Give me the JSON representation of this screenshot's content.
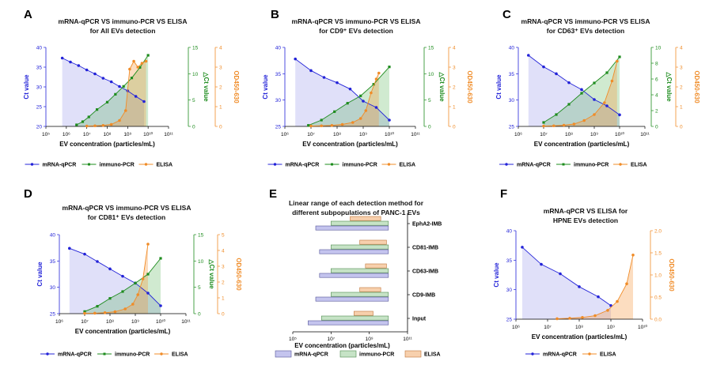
{
  "chart_data": [
    {
      "id": "A",
      "type": "line",
      "panel_label": "A",
      "title_line1": "mRNA-qPCR VS immuno-PCR VS ELISA",
      "title_line2": "for All EVs detection",
      "xlabel": "EV concentration (particles/mL)",
      "ylabel_left": "Ct value",
      "ylabel_mid": "△Ct value",
      "ylabel_right": "OD450-630",
      "xticks": [
        "10⁵",
        "10⁶",
        "10⁷",
        "10⁸",
        "10⁹",
        "10¹⁰",
        "10¹¹"
      ],
      "x_log_range": [
        5,
        11
      ],
      "ct_range": [
        20,
        40
      ],
      "ct_ticks": [
        "20",
        "25",
        "30",
        "35",
        "40"
      ],
      "dct_range": [
        0,
        15
      ],
      "dct_ticks": [
        "0",
        "5",
        "10",
        "15"
      ],
      "od_range": [
        0,
        4
      ],
      "od_ticks": [
        "0",
        "1",
        "2",
        "3",
        "4"
      ],
      "series": [
        {
          "name": "mRNA-qPCR",
          "axis": "ct",
          "color": "#2323d8",
          "x": [
            5.8,
            6.2,
            6.6,
            7.0,
            7.4,
            7.8,
            8.2,
            8.6,
            9.0,
            9.4,
            9.8
          ],
          "y": [
            37.3,
            36.3,
            35.4,
            34.3,
            33.3,
            32.2,
            31.3,
            30.1,
            29.0,
            27.6,
            26.3
          ]
        },
        {
          "name": "immuno-PCR",
          "axis": "dct",
          "color": "#1e8c1e",
          "x": [
            6.5,
            6.8,
            7.1,
            7.5,
            8.0,
            8.4,
            8.8,
            9.2,
            9.6,
            10.0
          ],
          "y": [
            0.3,
            0.9,
            1.8,
            3.2,
            4.6,
            6.1,
            7.6,
            9.2,
            11.2,
            13.5
          ]
        },
        {
          "name": "ELISA",
          "axis": "od",
          "color": "#f08c28",
          "x": [
            7.0,
            7.4,
            7.8,
            8.2,
            8.6,
            8.9,
            9.1,
            9.3,
            9.5,
            9.7,
            9.9
          ],
          "y": [
            0.02,
            0.03,
            0.05,
            0.1,
            0.3,
            0.8,
            2.9,
            3.3,
            3.0,
            3.2,
            3.3
          ]
        }
      ]
    },
    {
      "id": "B",
      "type": "line",
      "panel_label": "B",
      "title_line1": "mRNA-qPCR VS immuno-PCR VS ELISA",
      "title_line2": "for CD9⁺ EVs detection",
      "xlabel": "EV concentration (particles/mL)",
      "ylabel_left": "Ct value",
      "ylabel_mid": "△Ct value",
      "ylabel_right": "OD450-630",
      "xticks": [
        "10⁶",
        "10⁷",
        "10⁸",
        "10⁹",
        "10¹⁰",
        "10¹¹"
      ],
      "x_log_range": [
        6,
        11
      ],
      "ct_range": [
        25,
        40
      ],
      "ct_ticks": [
        "25",
        "30",
        "35",
        "40"
      ],
      "dct_range": [
        0,
        15
      ],
      "dct_ticks": [
        "0",
        "5",
        "10",
        "15"
      ],
      "od_range": [
        0,
        4
      ],
      "od_ticks": [
        "0",
        "1",
        "2",
        "3",
        "4"
      ],
      "series": [
        {
          "name": "mRNA-qPCR",
          "axis": "ct",
          "color": "#2323d8",
          "x": [
            6.4,
            7.0,
            7.5,
            8.0,
            8.5,
            9.0,
            9.5,
            10.0
          ],
          "y": [
            37.8,
            35.6,
            34.3,
            33.3,
            32.1,
            29.8,
            28.6,
            26.2
          ]
        },
        {
          "name": "immuno-PCR",
          "axis": "dct",
          "color": "#1e8c1e",
          "x": [
            6.9,
            7.4,
            7.9,
            8.4,
            8.9,
            9.4,
            10.0
          ],
          "y": [
            0.2,
            1.2,
            2.8,
            4.4,
            5.8,
            8.0,
            11.3
          ]
        },
        {
          "name": "ELISA",
          "axis": "od",
          "color": "#f08c28",
          "x": [
            7.0,
            7.4,
            7.8,
            8.2,
            8.6,
            8.9,
            9.1,
            9.3,
            9.5,
            9.6
          ],
          "y": [
            0.02,
            0.03,
            0.05,
            0.1,
            0.2,
            0.4,
            0.8,
            1.7,
            2.4,
            2.7
          ]
        }
      ]
    },
    {
      "id": "C",
      "type": "line",
      "panel_label": "C",
      "title_line1": "mRNA-qPCR VS immuno-PCR VS ELISA",
      "title_line2": "for CD63⁺ EVs detection",
      "xlabel": "EV concentration (particles/mL)",
      "ylabel_left": "Ct value",
      "ylabel_mid": "△Ct value",
      "ylabel_right": "OD450-630",
      "xticks": [
        "10⁶",
        "10⁷",
        "10⁸",
        "10⁹",
        "10¹⁰",
        "10¹¹"
      ],
      "x_log_range": [
        6,
        11
      ],
      "ct_range": [
        25,
        40
      ],
      "ct_ticks": [
        "25",
        "30",
        "35",
        "40"
      ],
      "dct_range": [
        0,
        10
      ],
      "dct_ticks": [
        "0",
        "2",
        "4",
        "6",
        "8",
        "10"
      ],
      "od_range": [
        0,
        4
      ],
      "od_ticks": [
        "0",
        "1",
        "2",
        "3",
        "4"
      ],
      "series": [
        {
          "name": "mRNA-qPCR",
          "axis": "ct",
          "color": "#2323d8",
          "x": [
            6.4,
            7.0,
            7.5,
            8.0,
            8.5,
            9.0,
            9.5,
            10.0
          ],
          "y": [
            38.5,
            36.3,
            35.0,
            33.3,
            32.0,
            30.1,
            28.9,
            27.2
          ]
        },
        {
          "name": "immuno-PCR",
          "axis": "dct",
          "color": "#1e8c1e",
          "x": [
            7.0,
            7.5,
            8.0,
            8.5,
            9.0,
            9.5,
            10.0
          ],
          "y": [
            0.5,
            1.5,
            2.8,
            4.2,
            5.5,
            6.8,
            8.8
          ]
        },
        {
          "name": "ELISA",
          "axis": "od",
          "color": "#f08c28",
          "x": [
            7.0,
            7.4,
            7.8,
            8.2,
            8.6,
            9.0,
            9.4,
            9.7,
            9.9
          ],
          "y": [
            0.02,
            0.03,
            0.06,
            0.12,
            0.3,
            0.6,
            1.2,
            2.3,
            3.3
          ]
        }
      ]
    },
    {
      "id": "D",
      "type": "line",
      "panel_label": "D",
      "title_line1": "mRNA-qPCR VS immuno-PCR VS ELISA",
      "title_line2": "for CD81⁺ EVs detection",
      "xlabel": "EV concentration (particles/mL)",
      "ylabel_left": "Ct value",
      "ylabel_mid": "△Ct value",
      "ylabel_right": "OD450-630",
      "xticks": [
        "10⁶",
        "10⁷",
        "10⁸",
        "10⁹",
        "10¹⁰",
        "10¹¹"
      ],
      "x_log_range": [
        6,
        11
      ],
      "ct_range": [
        25,
        40
      ],
      "ct_ticks": [
        "25",
        "30",
        "35",
        "40"
      ],
      "dct_range": [
        0,
        15
      ],
      "dct_ticks": [
        "0",
        "5",
        "10",
        "15"
      ],
      "od_range": [
        0,
        5
      ],
      "od_ticks": [
        "0",
        "1",
        "2",
        "3",
        "4",
        "5"
      ],
      "series": [
        {
          "name": "mRNA-qPCR",
          "axis": "ct",
          "color": "#2323d8",
          "x": [
            6.4,
            7.0,
            7.5,
            8.0,
            8.5,
            9.0,
            9.5,
            10.0
          ],
          "y": [
            37.4,
            36.3,
            34.9,
            33.5,
            32.1,
            30.8,
            28.9,
            26.5
          ]
        },
        {
          "name": "immuno-PCR",
          "axis": "dct",
          "color": "#1e8c1e",
          "x": [
            7.0,
            7.5,
            8.0,
            8.5,
            9.0,
            9.5,
            10.0
          ],
          "y": [
            0.4,
            1.4,
            2.9,
            4.2,
            5.8,
            7.5,
            10.5
          ]
        },
        {
          "name": "ELISA",
          "axis": "od",
          "color": "#f08c28",
          "x": [
            7.0,
            7.4,
            7.8,
            8.2,
            8.6,
            8.9,
            9.1,
            9.3,
            9.5
          ],
          "y": [
            0.02,
            0.03,
            0.06,
            0.12,
            0.3,
            0.6,
            1.2,
            2.2,
            4.4
          ]
        }
      ]
    },
    {
      "id": "E",
      "type": "bar",
      "panel_label": "E",
      "title_line1": "Linear range of each detection method for",
      "title_line2": "different subpopulations of PANC-1 EVs",
      "xlabel": "EV concentration (particles/mL)",
      "xticks": [
        "10⁵",
        "10⁷",
        "10⁹",
        "10¹¹"
      ],
      "x_log_range": [
        5,
        11
      ],
      "categories": [
        "EphA2-IMB",
        "CD81-IMB",
        "CD63-IMB",
        "CD9-IMB",
        "Input"
      ],
      "series": [
        {
          "name": "mRNA-qPCR",
          "color": "#c4c4ee",
          "edge": "#55559a",
          "ranges": [
            [
              6.2,
              10.0
            ],
            [
              6.4,
              10.0
            ],
            [
              6.4,
              10.0
            ],
            [
              6.2,
              10.0
            ],
            [
              5.8,
              10.0
            ]
          ]
        },
        {
          "name": "immuno-PCR",
          "color": "#c6e3c6",
          "edge": "#4f8a4f",
          "ranges": [
            [
              7.0,
              10.0
            ],
            [
              7.0,
              10.0
            ],
            [
              7.0,
              10.0
            ],
            [
              7.0,
              10.0
            ],
            [
              6.5,
              10.0
            ]
          ]
        },
        {
          "name": "ELISA",
          "color": "#f7d0ad",
          "edge": "#c0763a",
          "ranges": [
            [
              8.0,
              9.6
            ],
            [
              8.5,
              9.9
            ],
            [
              8.8,
              9.9
            ],
            [
              8.5,
              9.6
            ],
            [
              8.2,
              9.2
            ]
          ]
        }
      ]
    },
    {
      "id": "F",
      "type": "line",
      "panel_label": "F",
      "title_line1": "mRNA-qPCR VS ELISA for",
      "title_line2": "HPNE EVs detection",
      "xlabel": "EV concentration (particles/mL)",
      "ylabel_left": "Ct value",
      "ylabel_right": "OD450-630",
      "xticks": [
        "10⁶",
        "10⁷",
        "10⁸",
        "10⁹",
        "10¹⁰"
      ],
      "x_log_range": [
        6,
        10
      ],
      "ct_range": [
        25,
        40
      ],
      "ct_ticks": [
        "25",
        "30",
        "35",
        "40"
      ],
      "od_range": [
        0,
        2
      ],
      "od_ticks": [
        "0.0",
        "0.5",
        "1.0",
        "1.5",
        "2.0"
      ],
      "series": [
        {
          "name": "mRNA-qPCR",
          "axis": "ct",
          "color": "#2323d8",
          "x": [
            6.2,
            6.8,
            7.4,
            8.0,
            8.6,
            9.0
          ],
          "y": [
            37.2,
            34.3,
            32.7,
            30.5,
            28.8,
            27.3
          ]
        },
        {
          "name": "ELISA",
          "axis": "od",
          "color": "#f08c28",
          "x": [
            7.3,
            7.7,
            8.1,
            8.5,
            8.9,
            9.2,
            9.5,
            9.7
          ],
          "y": [
            0.01,
            0.02,
            0.04,
            0.08,
            0.2,
            0.4,
            0.8,
            1.45
          ]
        }
      ]
    }
  ]
}
